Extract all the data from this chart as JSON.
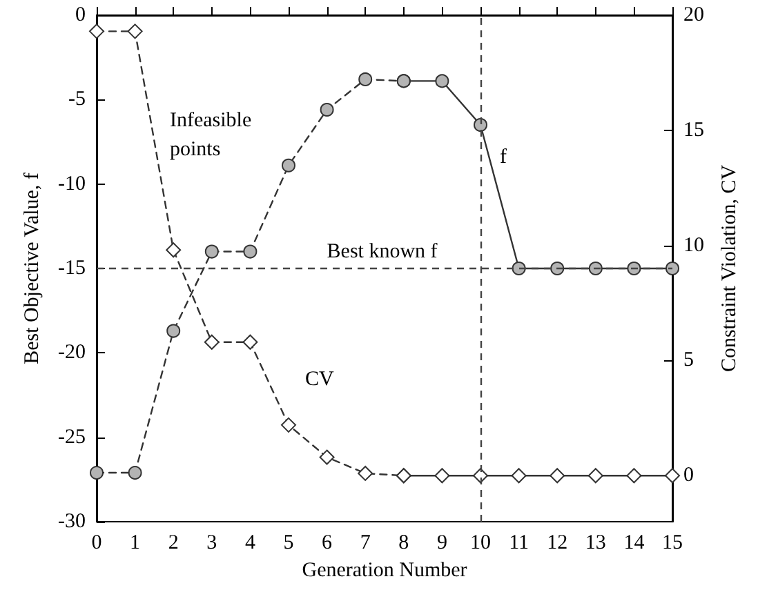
{
  "chart_data": {
    "type": "line",
    "xlabel": "Generation Number",
    "ylabel": "Best Objective Value, f",
    "y2label": "Constraint Violation, CV",
    "xlim": [
      0,
      15
    ],
    "xticks": [
      0,
      1,
      2,
      3,
      4,
      5,
      6,
      7,
      8,
      9,
      10,
      11,
      12,
      13,
      14,
      15
    ],
    "ylim": [
      -30,
      0
    ],
    "yticks": [
      -30,
      -25,
      -20,
      -15,
      -10,
      -5,
      0
    ],
    "y2lim": [
      -2,
      20
    ],
    "y2ticks": [
      0,
      5,
      10,
      15,
      20
    ],
    "series": [
      {
        "x": [
          0,
          1,
          2,
          3,
          4,
          5,
          6,
          7,
          8
        ],
        "values": [
          -27.1,
          -27.1,
          -18.7,
          -14.0,
          -14.0,
          -8.9,
          -5.6,
          -3.8,
          -3.9
        ],
        "color": "#b4b4b4",
        "marker": "circle",
        "line_style": "dashed"
      },
      {
        "x": [
          8,
          9,
          10,
          11,
          12,
          13,
          14,
          15
        ],
        "values": [
          -3.9,
          -3.9,
          -6.5,
          -15,
          -15,
          -15,
          -15,
          -15
        ],
        "color": "#b4b4b4",
        "marker": "circle",
        "line_style": "solid"
      },
      {
        "x": [
          0,
          1,
          2,
          3,
          4,
          5,
          6,
          7,
          8
        ],
        "values": [
          19.3,
          19.3,
          9.8,
          5.8,
          5.8,
          2.2,
          0.8,
          0.1,
          0
        ],
        "color": "#ffffff",
        "marker": "diamond",
        "line_style": "dashed",
        "axis": "y2"
      },
      {
        "x": [
          8,
          9,
          10,
          11,
          12,
          13,
          14,
          15
        ],
        "values": [
          0,
          0,
          0,
          0,
          0,
          0,
          0,
          0
        ],
        "color": "#ffffff",
        "marker": "diamond",
        "line_style": "solid",
        "axis": "y2"
      }
    ],
    "ref_lines": [
      {
        "axis": "y",
        "value": -15,
        "label": "Best known f",
        "line_style": "dashed"
      },
      {
        "axis": "x",
        "value": 10,
        "line_style": "dashed"
      }
    ],
    "annotations": [
      "Infeasible\npoints",
      "f",
      "CV"
    ]
  }
}
